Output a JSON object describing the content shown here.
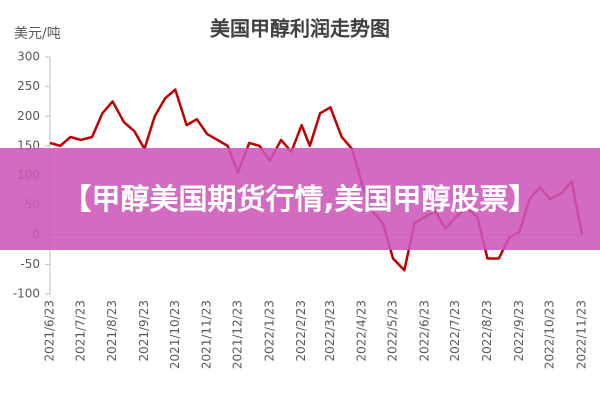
{
  "chart_data": {
    "type": "line",
    "title": "美国甲醇利润走势图",
    "y_label": "美元/吨",
    "x": [
      "2021/6/23",
      "2021/7/3",
      "2021/7/13",
      "2021/7/23",
      "2021/8/3",
      "2021/8/13",
      "2021/8/23",
      "2021/9/3",
      "2021/9/13",
      "2021/9/23",
      "2021/10/3",
      "2021/10/13",
      "2021/10/23",
      "2021/11/3",
      "2021/11/13",
      "2021/11/23",
      "2021/12/3",
      "2021/12/13",
      "2021/12/23",
      "2022/1/3",
      "2022/1/13",
      "2022/1/23",
      "2022/2/3",
      "2022/2/13",
      "2022/2/23",
      "2022/3/3",
      "2022/3/13",
      "2022/3/23",
      "2022/4/3",
      "2022/4/13",
      "2022/4/23",
      "2022/5/3",
      "2022/5/13",
      "2022/5/23",
      "2022/6/3",
      "2022/6/13",
      "2022/6/23",
      "2022/7/3",
      "2022/7/13",
      "2022/7/23",
      "2022/8/3",
      "2022/8/13",
      "2022/8/23",
      "2022/9/3",
      "2022/9/13",
      "2022/9/23",
      "2022/10/3",
      "2022/10/13",
      "2022/10/23",
      "2022/11/3",
      "2022/11/13",
      "2022/11/23"
    ],
    "series": [
      {
        "color": "#c00000",
        "values": [
          155,
          150,
          165,
          160,
          165,
          205,
          225,
          190,
          175,
          145,
          200,
          230,
          245,
          185,
          195,
          170,
          160,
          150,
          105,
          155,
          150,
          125,
          160,
          140,
          185,
          150,
          205,
          215,
          165,
          145,
          85,
          40,
          20,
          -40,
          -60,
          20,
          30,
          40,
          10,
          30,
          45,
          30,
          -40,
          -40,
          -5,
          5,
          60,
          80,
          60,
          70,
          90,
          0
        ]
      }
    ],
    "xlim": [
      "2021/6/23",
      "2022/11/23"
    ],
    "xticks": [
      "2021/6/23",
      "2021/7/23",
      "2021/8/23",
      "2021/9/23",
      "2021/10/23",
      "2021/11/23",
      "2021/12/23",
      "2022/1/23",
      "2022/2/23",
      "2022/3/23",
      "2022/4/23",
      "2022/5/23",
      "2022/6/23",
      "2022/7/23",
      "2022/8/23",
      "2022/9/23",
      "2022/10/23",
      "2022/11/23"
    ],
    "ylim": [
      -100,
      300
    ],
    "yticks": [
      -100,
      -50,
      0,
      50,
      100,
      150,
      200,
      250,
      300
    ],
    "grid": false
  },
  "banner": {
    "text": "【甲醇美国期货行情,美国甲醇股票】"
  }
}
